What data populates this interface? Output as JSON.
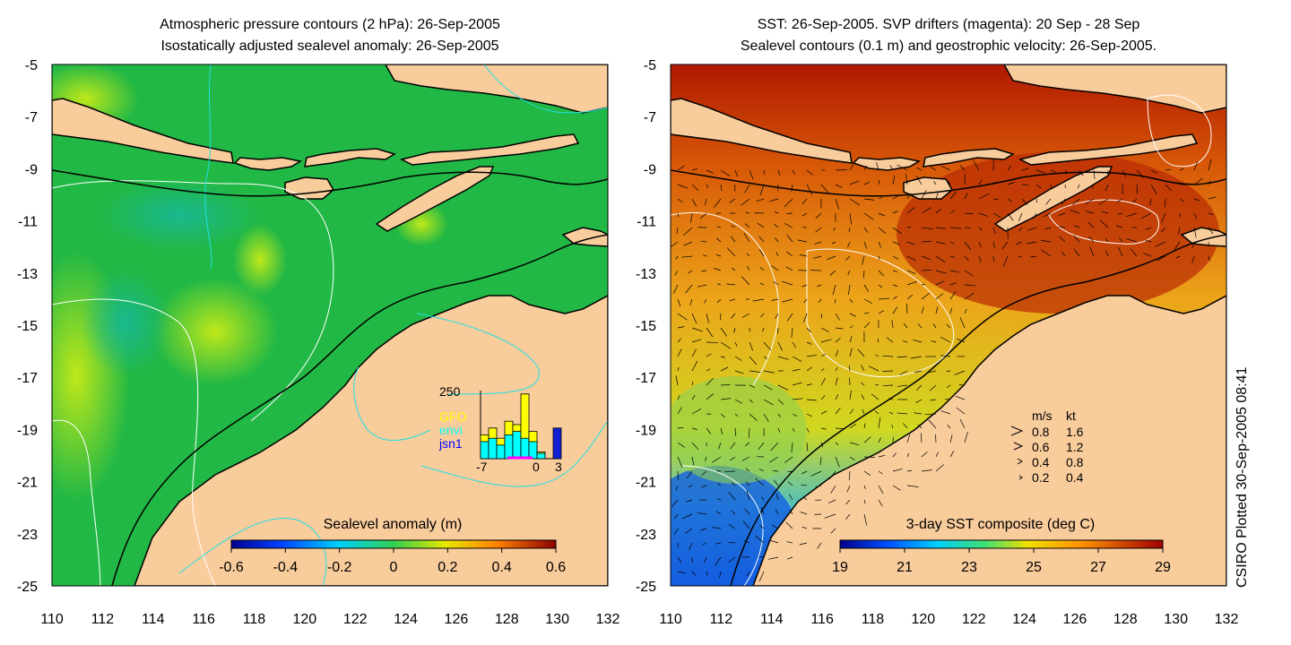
{
  "left_panel": {
    "title_line1": "Atmospheric pressure contours (2 hPa): 26-Sep-2005",
    "title_line2": "Isostatically adjusted sealevel anomaly: 26-Sep-2005",
    "colorbar": {
      "label": "Sealevel anomaly (m)",
      "ticks": [
        "-0.6",
        "-0.4",
        "-0.2",
        "0",
        "0.2",
        "0.4",
        "0.6"
      ]
    },
    "histogram": {
      "ymax_label": "250",
      "x_labels": [
        "-7",
        "0",
        "3"
      ],
      "legend": [
        {
          "label": "GFO",
          "color": "#ffff00"
        },
        {
          "label": "envi",
          "color": "#00ffff"
        },
        {
          "label": "jsn1",
          "color": "#0000ff"
        }
      ],
      "bars": [
        {
          "bin": -7,
          "yellow": 0.35,
          "cyan": 0.25,
          "blue": 0
        },
        {
          "bin": -6,
          "yellow": 0.45,
          "cyan": 0.3,
          "blue": 0
        },
        {
          "bin": -5,
          "yellow": 0.3,
          "cyan": 0.2,
          "blue": 0
        },
        {
          "bin": -4,
          "yellow": 0.55,
          "cyan": 0.35,
          "blue": 0
        },
        {
          "bin": -3,
          "yellow": 0.5,
          "cyan": 0.4,
          "blue": 0
        },
        {
          "bin": -2,
          "yellow": 0.95,
          "cyan": 0.3,
          "blue": 0
        },
        {
          "bin": -1,
          "yellow": 0.4,
          "cyan": 0.25,
          "blue": 0
        },
        {
          "bin": 0,
          "yellow": 0.1,
          "cyan": 0.08,
          "blue": 0
        },
        {
          "bin": 2,
          "yellow": 0,
          "cyan": 0,
          "blue": 0.45
        }
      ]
    }
  },
  "right_panel": {
    "title_line1": "SST: 26-Sep-2005. SVP drifters (magenta): 20 Sep - 28 Sep",
    "title_line2": "Sealevel contours (0.1 m) and geostrophic velocity: 26-Sep-2005.",
    "colorbar": {
      "label": "3-day SST composite (deg C)",
      "ticks": [
        "19",
        "21",
        "23",
        "25",
        "27",
        "29"
      ]
    },
    "velocity_legend": {
      "header_ms": "m/s",
      "header_kt": "kt",
      "rows": [
        {
          "ms": "0.8",
          "kt": "1.6"
        },
        {
          "ms": "0.6",
          "kt": "1.2"
        },
        {
          "ms": "0.4",
          "kt": "0.8"
        },
        {
          "ms": "0.2",
          "kt": "0.4"
        }
      ]
    }
  },
  "axes": {
    "lat_labels": [
      "-5",
      "-7",
      "-9",
      "-11",
      "-13",
      "-15",
      "-17",
      "-19",
      "-21",
      "-23",
      "-25"
    ],
    "lon_labels": [
      "110",
      "112",
      "114",
      "116",
      "118",
      "120",
      "122",
      "124",
      "126",
      "128",
      "130",
      "132"
    ]
  },
  "credit": "CSIRO Plotted 30-Sep-2005 08:41",
  "colors": {
    "land": "#f9cc9c",
    "sla_ocean": "#22b845",
    "sst_ocean": "#e9a01a"
  }
}
